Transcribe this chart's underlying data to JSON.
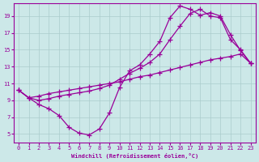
{
  "xlabel": "Windchill (Refroidissement éolien,°C)",
  "bg_color": "#cce8e8",
  "line_color": "#990099",
  "grid_color": "#aacccc",
  "xlim": [
    -0.5,
    23.5
  ],
  "ylim": [
    4.0,
    20.5
  ],
  "xticks": [
    0,
    1,
    2,
    3,
    4,
    5,
    6,
    7,
    8,
    9,
    10,
    11,
    12,
    13,
    14,
    15,
    16,
    17,
    18,
    19,
    20,
    21,
    22,
    23
  ],
  "yticks": [
    5,
    7,
    9,
    11,
    13,
    15,
    17,
    19
  ],
  "line1_x": [
    0,
    1,
    2,
    3,
    4,
    5,
    6,
    7,
    8,
    9,
    10,
    11,
    12,
    13,
    14,
    15,
    16,
    17,
    18,
    19,
    20,
    21,
    22,
    23
  ],
  "line1_y": [
    10.2,
    9.3,
    9.5,
    9.8,
    10.0,
    10.2,
    10.4,
    10.6,
    10.8,
    11.0,
    11.2,
    11.5,
    11.8,
    12.0,
    12.3,
    12.6,
    12.9,
    13.2,
    13.5,
    13.8,
    14.0,
    14.2,
    14.5,
    13.4
  ],
  "line2_x": [
    0,
    1,
    2,
    3,
    4,
    5,
    6,
    7,
    8,
    9,
    10,
    11,
    12,
    13,
    14,
    15,
    16,
    17,
    18,
    19,
    20,
    21,
    22,
    23
  ],
  "line2_y": [
    10.2,
    9.3,
    8.5,
    8.0,
    7.2,
    5.8,
    5.1,
    4.9,
    5.6,
    7.5,
    10.5,
    12.5,
    13.2,
    14.5,
    16.0,
    18.8,
    20.2,
    19.8,
    19.1,
    19.4,
    19.0,
    16.8,
    14.9,
    13.4
  ],
  "line3_x": [
    0,
    1,
    2,
    3,
    4,
    5,
    6,
    7,
    8,
    9,
    10,
    11,
    12,
    13,
    14,
    15,
    16,
    17,
    18,
    19,
    20,
    21,
    22,
    23
  ],
  "line3_y": [
    10.2,
    9.3,
    9.0,
    9.2,
    9.5,
    9.7,
    9.9,
    10.1,
    10.4,
    10.8,
    11.5,
    12.2,
    12.8,
    13.5,
    14.5,
    16.2,
    17.8,
    19.3,
    19.8,
    19.0,
    18.8,
    16.2,
    15.0,
    13.4
  ]
}
